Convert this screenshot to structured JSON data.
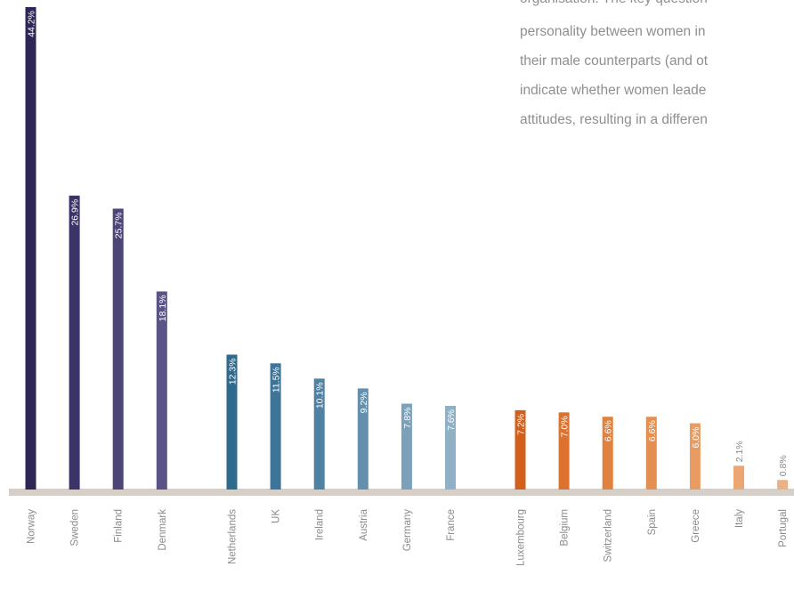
{
  "side_text": [
    "organisation. The key question",
    "personality between women in",
    "their male counterparts (and ot",
    "indicate whether women leade",
    "attitudes, resulting in a differen"
  ],
  "chart_data": {
    "type": "bar",
    "title": "",
    "xlabel": "",
    "ylabel": "",
    "ylim": [
      0,
      44.2
    ],
    "grid": false,
    "groups": [
      {
        "categories": [
          "Norway",
          "Sweden",
          "Finland",
          "Denmark"
        ],
        "values": [
          44.2,
          26.9,
          25.7,
          18.1
        ],
        "labels": [
          "44.2%",
          "26.9%",
          "25.7%",
          "18.1%"
        ],
        "colors": [
          "#2d2656",
          "#3a3468",
          "#4b4578",
          "#5a5386"
        ]
      },
      {
        "categories": [
          "Netherlands",
          "UK",
          "Ireland",
          "Austria",
          "Germany",
          "France"
        ],
        "values": [
          12.3,
          11.5,
          10.1,
          9.2,
          7.8,
          7.6
        ],
        "labels": [
          "12.3%",
          "11.5%",
          "10.1%",
          "9.2%",
          "7.8%",
          "7.6%"
        ],
        "colors": [
          "#2e6a8c",
          "#3d7497",
          "#4f82a2",
          "#6590ad",
          "#7ba1ba",
          "#90b0c6"
        ]
      },
      {
        "categories": [
          "Luxembourg",
          "Belgium",
          "Switzerland",
          "Spain",
          "Greece",
          "Italy",
          "Portugal"
        ],
        "values": [
          7.2,
          7.0,
          6.6,
          6.6,
          6.0,
          2.1,
          0.8
        ],
        "labels": [
          "7.2%",
          "7.0%",
          "6.6%",
          "6.6%",
          "6.0%",
          "2.1%",
          "0.8%"
        ],
        "colors": [
          "#d2601c",
          "#dc7230",
          "#e0813f",
          "#e48f52",
          "#e89c64",
          "#eba672",
          "#eeb184"
        ]
      }
    ],
    "baseline_color": "#d6cfc8",
    "tick_label_color": "#8a8a8a",
    "value_label_color_inside": "#ffffff",
    "value_label_color_outside": "#8a8a8a"
  }
}
